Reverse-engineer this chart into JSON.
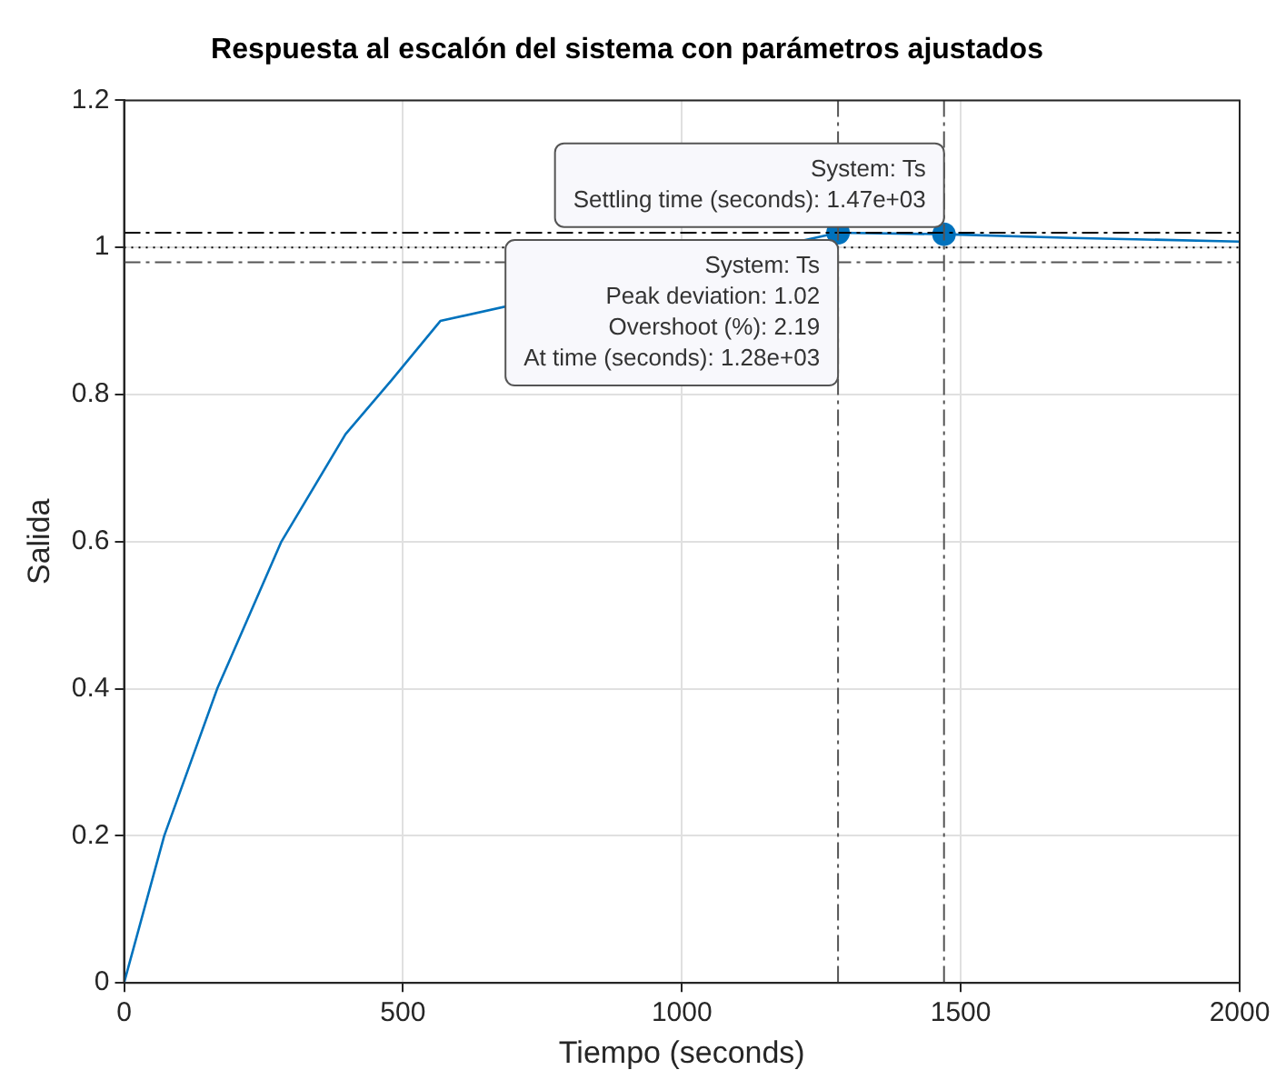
{
  "chart_data": {
    "type": "line",
    "title": "Respuesta al escalón del sistema con parámetros ajustados",
    "xlabel": "Tiempo (seconds)",
    "ylabel": "Salida",
    "xlim": [
      0,
      2000
    ],
    "xticks": [
      0,
      500,
      1000,
      1500,
      2000
    ],
    "ylim": [
      0,
      1.2
    ],
    "yticks": [
      0,
      0.2,
      0.4,
      0.6,
      0.8,
      1,
      1.2
    ],
    "grid": true,
    "legend": false,
    "series": [
      {
        "color": "#0072bd",
        "marker": "none",
        "x": [
          0,
          72,
          167,
          282,
          397,
          480,
          567,
          700,
          850,
          1000,
          1150,
          1280,
          1470,
          1700,
          2000
        ],
        "values": [
          0,
          0.2,
          0.4,
          0.6,
          0.746,
          0.82,
          0.9,
          null,
          null,
          null,
          null,
          1.02,
          1.018,
          1.013,
          1.008
        ]
      },
      {
        "type": "scatter",
        "color": "#0072bd",
        "marker": "circle",
        "x": [
          1280,
          1470
        ],
        "values": [
          1.02,
          1.018
        ]
      }
    ],
    "ref_lines": [
      {
        "axis": "y",
        "value": 1.02,
        "color": "#000000",
        "line_style": "dashed"
      },
      {
        "axis": "y",
        "value": 1,
        "color": "#000000",
        "line_style": "dotted"
      },
      {
        "axis": "y",
        "value": 0.98,
        "color": "#555555",
        "line_style": "dashed"
      },
      {
        "axis": "x",
        "value": 1280,
        "color": "#555555",
        "line_style": "dashed"
      },
      {
        "axis": "x",
        "value": 1470,
        "color": "#555555",
        "line_style": "dashed"
      }
    ],
    "annotations": [
      {
        "text": "System: Ts\nPeak deviation: 1.02\nOvershoot (%): 2.19\nAt time (seconds): 1.28e+03",
        "x": 1280,
        "y": 1.02
      },
      {
        "text": "System: Ts\nSettling time (seconds): 1.47e+03",
        "x": 1470,
        "y": 1.018
      }
    ]
  }
}
